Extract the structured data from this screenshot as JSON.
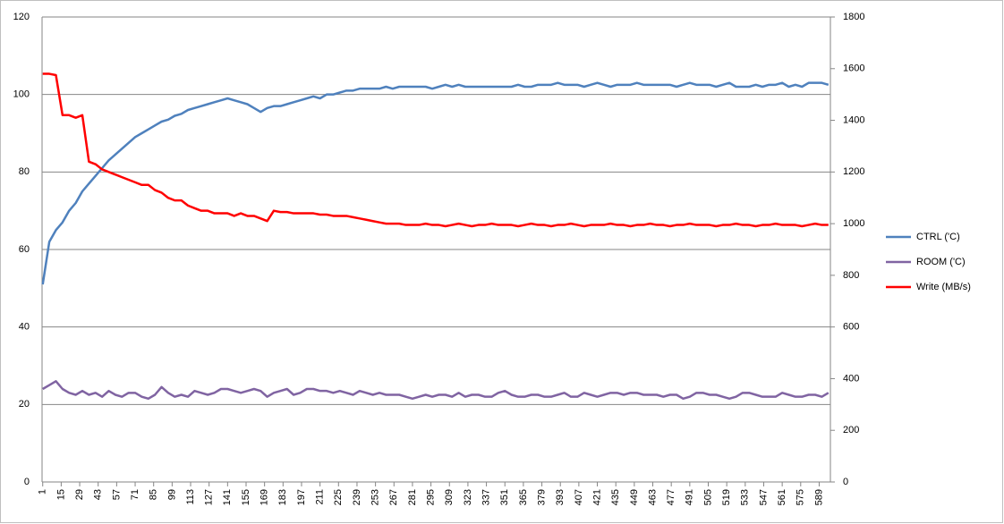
{
  "chart_data": {
    "type": "line",
    "x": [
      1,
      6,
      11,
      16,
      21,
      26,
      31,
      36,
      41,
      46,
      51,
      56,
      61,
      66,
      71,
      76,
      81,
      86,
      91,
      96,
      101,
      106,
      111,
      116,
      121,
      126,
      131,
      136,
      141,
      146,
      151,
      156,
      161,
      166,
      171,
      176,
      181,
      186,
      191,
      196,
      201,
      206,
      211,
      216,
      221,
      226,
      231,
      236,
      241,
      246,
      251,
      256,
      261,
      266,
      271,
      276,
      281,
      286,
      291,
      296,
      301,
      306,
      311,
      316,
      321,
      326,
      331,
      336,
      341,
      346,
      351,
      356,
      361,
      366,
      371,
      376,
      381,
      386,
      391,
      396,
      401,
      406,
      411,
      416,
      421,
      426,
      431,
      436,
      441,
      446,
      451,
      456,
      461,
      466,
      471,
      476,
      481,
      486,
      491,
      496,
      501,
      506,
      511,
      516,
      521,
      526,
      531,
      536,
      541,
      546,
      551,
      556,
      561,
      566,
      571,
      576,
      581,
      586,
      591,
      596
    ],
    "xlim": [
      0.5,
      597.5
    ],
    "xticks": [
      1,
      15,
      29,
      43,
      57,
      71,
      85,
      99,
      113,
      127,
      141,
      155,
      169,
      183,
      197,
      211,
      225,
      239,
      253,
      267,
      281,
      295,
      309,
      323,
      337,
      351,
      365,
      379,
      393,
      407,
      421,
      435,
      449,
      463,
      477,
      491,
      505,
      519,
      533,
      547,
      561,
      575,
      589
    ],
    "ylim": [
      0,
      120
    ],
    "yticks": [
      0,
      20,
      40,
      60,
      80,
      100,
      120
    ],
    "y2lim": [
      0,
      1800
    ],
    "y2ticks": [
      0,
      200,
      400,
      600,
      800,
      1000,
      1200,
      1400,
      1600,
      1800
    ],
    "grid": true,
    "legend": "right",
    "series": [
      {
        "name": "CTRL ('C)",
        "color": "#4f81bd",
        "values": [
          51,
          62,
          65,
          67,
          70,
          72,
          75,
          77,
          79,
          81,
          83,
          84.5,
          86,
          87.5,
          89,
          90,
          91,
          92,
          93,
          93.5,
          94.5,
          95,
          96,
          96.5,
          97,
          97.5,
          98,
          98.5,
          99,
          98.5,
          98,
          97.5,
          96.5,
          95.5,
          96.5,
          97,
          97,
          97.5,
          98,
          98.5,
          99,
          99.5,
          99,
          100,
          100,
          100.5,
          101,
          101,
          101.5,
          101.5,
          101.5,
          101.5,
          102,
          101.5,
          102,
          102,
          102,
          102,
          102,
          101.5,
          102,
          102.5,
          102,
          102.5,
          102,
          102,
          102,
          102,
          102,
          102,
          102,
          102,
          102.5,
          102,
          102,
          102.5,
          102.5,
          102.5,
          103,
          102.5,
          102.5,
          102.5,
          102,
          102.5,
          103,
          102.5,
          102,
          102.5,
          102.5,
          102.5,
          103,
          102.5,
          102.5,
          102.5,
          102.5,
          102.5,
          102,
          102.5,
          103,
          102.5,
          102.5,
          102.5,
          102,
          102.5,
          103,
          102,
          102,
          102,
          102.5,
          102,
          102.5,
          102.5,
          103,
          102,
          102.5,
          102,
          103,
          103,
          103,
          102.5
        ]
      },
      {
        "name": "ROOM ('C)",
        "color": "#8064a2",
        "values": [
          24,
          25,
          26,
          24,
          23,
          22.5,
          23.5,
          22.5,
          23,
          22,
          23.5,
          22.5,
          22,
          23,
          23,
          22,
          21.5,
          22.5,
          24.5,
          23,
          22,
          22.5,
          22,
          23.5,
          23,
          22.5,
          23,
          24,
          24,
          23.5,
          23,
          23.5,
          24,
          23.5,
          22,
          23,
          23.5,
          24,
          22.5,
          23,
          24,
          24,
          23.5,
          23.5,
          23,
          23.5,
          23,
          22.5,
          23.5,
          23,
          22.5,
          23,
          22.5,
          22.5,
          22.5,
          22,
          21.5,
          22,
          22.5,
          22,
          22.5,
          22.5,
          22,
          23,
          22,
          22.5,
          22.5,
          22,
          22,
          23,
          23.5,
          22.5,
          22,
          22,
          22.5,
          22.5,
          22,
          22,
          22.5,
          23,
          22,
          22,
          23,
          22.5,
          22,
          22.5,
          23,
          23,
          22.5,
          23,
          23,
          22.5,
          22.5,
          22.5,
          22,
          22.5,
          22.5,
          21.5,
          22,
          23,
          23,
          22.5,
          22.5,
          22,
          21.5,
          22,
          23,
          23,
          22.5,
          22,
          22,
          22,
          23,
          22.5,
          22,
          22,
          22.5,
          22.5,
          22,
          23
        ]
      },
      {
        "name": "Write (MB/s)",
        "color": "#ff0000",
        "axis": "y2",
        "values": [
          1580,
          1580,
          1575,
          1420,
          1420,
          1410,
          1420,
          1240,
          1230,
          1210,
          1200,
          1190,
          1180,
          1170,
          1160,
          1150,
          1150,
          1130,
          1120,
          1100,
          1090,
          1090,
          1070,
          1060,
          1050,
          1050,
          1040,
          1040,
          1040,
          1030,
          1040,
          1030,
          1030,
          1020,
          1010,
          1050,
          1045,
          1045,
          1040,
          1040,
          1040,
          1040,
          1035,
          1035,
          1030,
          1030,
          1030,
          1025,
          1020,
          1015,
          1010,
          1005,
          1000,
          1000,
          1000,
          995,
          995,
          995,
          1000,
          995,
          995,
          990,
          995,
          1000,
          995,
          990,
          995,
          995,
          1000,
          995,
          995,
          995,
          990,
          995,
          1000,
          995,
          995,
          990,
          995,
          995,
          1000,
          995,
          990,
          995,
          995,
          995,
          1000,
          995,
          995,
          990,
          995,
          995,
          1000,
          995,
          995,
          990,
          995,
          995,
          1000,
          995,
          995,
          995,
          990,
          995,
          995,
          1000,
          995,
          995,
          990,
          995,
          995,
          1000,
          995,
          995,
          995,
          990,
          995,
          1000,
          995,
          995
        ]
      }
    ]
  }
}
